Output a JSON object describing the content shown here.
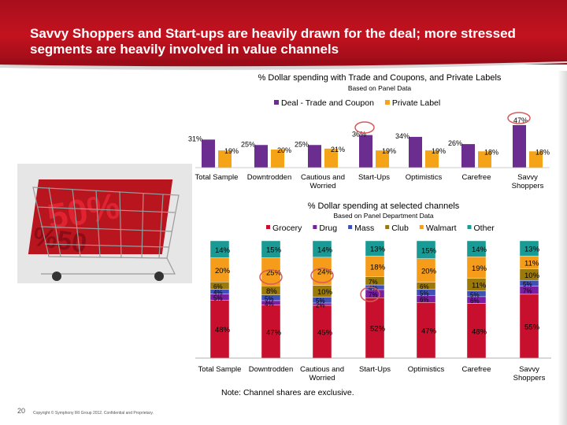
{
  "slide": {
    "title": "Savvy Shoppers and Start-ups are heavily drawn for the deal; more stressed segments are heavily involved in value channels",
    "note": "Note: Channel shares are exclusive.",
    "page_number": "20",
    "copyright": "Copyright © Symphony IRI Group 2012. Confidential and Proprietary."
  },
  "chart_data": [
    {
      "type": "bar",
      "title": "% Dollar spending with Trade and Coupons, and Private Labels",
      "subtitle": "Based on Panel Data",
      "categories": [
        "Total Sample",
        "Downtrodden",
        "Cautious and Worried",
        "Start-Ups",
        "Optimistics",
        "Carefree",
        "Savvy Shoppers"
      ],
      "series": [
        {
          "name": "Deal - Trade and Coupon",
          "color": "#6b2d8f",
          "values": [
            31,
            25,
            25,
            36,
            34,
            26,
            47
          ],
          "labels": [
            "31%",
            "25%",
            "25%",
            "36%",
            "34%",
            "26%",
            "47%"
          ]
        },
        {
          "name": "Private Label",
          "color": "#f5a317",
          "values": [
            19,
            20,
            21,
            19,
            19,
            18,
            18
          ],
          "labels": [
            "19%",
            "20%",
            "21%",
            "19%",
            "19%",
            "18%",
            "18%"
          ]
        }
      ],
      "highlighted": [
        "Savvy Shoppers / Deal - Trade and Coupon",
        "Start-Ups / Deal - Trade and Coupon"
      ],
      "legend": "top"
    },
    {
      "type": "bar",
      "stacked": true,
      "title": "% Dollar spending at selected channels",
      "subtitle": "Based on Panel Department Data",
      "categories": [
        "Total Sample",
        "Downtrodden",
        "Cautious and Worried",
        "Start-Ups",
        "Optimistics",
        "Carefree",
        "Savvy Shoppers"
      ],
      "series": [
        {
          "name": "Grocery",
          "color": "#c8102e",
          "values": [
            48,
            47,
            45,
            52,
            47,
            48,
            55
          ],
          "labels": [
            "48%",
            "47%",
            "45%",
            "52%",
            "47%",
            "48%",
            "55%"
          ]
        },
        {
          "name": "Drug",
          "color": "#7b1fa2",
          "values": [
            5,
            4,
            2,
            7,
            6,
            6,
            7
          ],
          "labels": [
            "5%",
            "4%",
            "2%",
            "7%",
            "6%",
            "6%",
            "7%"
          ]
        },
        {
          "name": "Mass",
          "color": "#3f51b5",
          "values": [
            4,
            5,
            5,
            4,
            5,
            5,
            5
          ],
          "labels": [
            "4%",
            "5%",
            "5%",
            "4%",
            "5%",
            "5%",
            "5%"
          ]
        },
        {
          "name": "Club",
          "color": "#9c7a0a",
          "values": [
            6,
            8,
            10,
            7,
            6,
            11,
            10
          ],
          "labels": [
            "6%",
            "8%",
            "10%",
            "7%",
            "6%",
            "11%",
            "10%"
          ]
        },
        {
          "name": "Walmart",
          "color": "#f59c1a",
          "values": [
            20,
            25,
            24,
            18,
            20,
            19,
            11
          ],
          "labels": [
            "20%",
            "25%",
            "24%",
            "18%",
            "20%",
            "19%",
            "11%"
          ]
        },
        {
          "name": "Other",
          "color": "#1a9a94",
          "values": [
            14,
            15,
            14,
            13,
            15,
            14,
            13
          ],
          "labels": [
            "14%",
            "15%",
            "14%",
            "13%",
            "15%",
            "14%",
            "13%"
          ]
        }
      ],
      "highlighted": [
        "Downtrodden / Walmart",
        "Cautious and Worried / Walmart",
        "Start-Ups / Club"
      ],
      "legend": "top"
    }
  ]
}
